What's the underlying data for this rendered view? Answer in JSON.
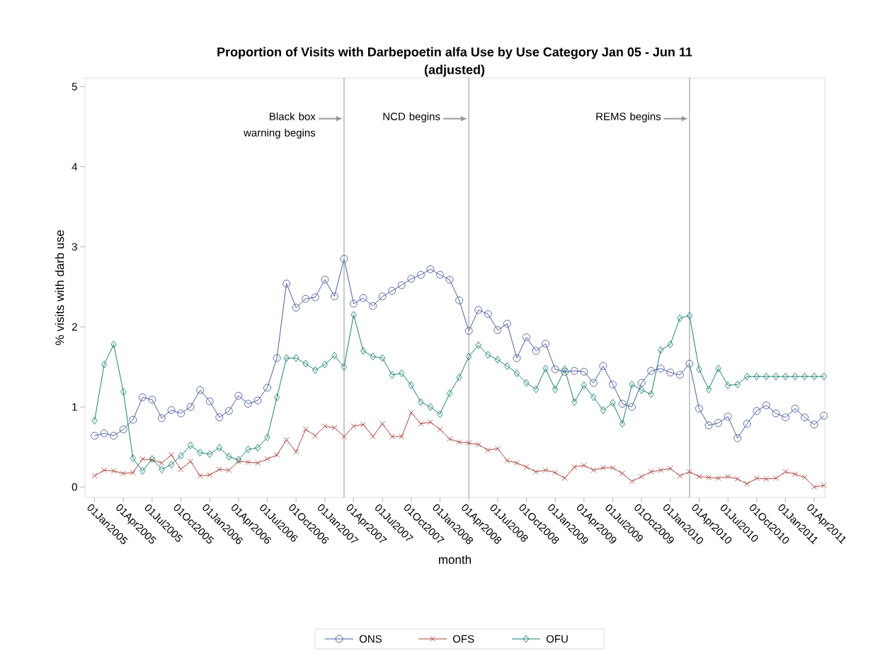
{
  "chart_data": {
    "type": "line",
    "title": "Proportion of Visits with Darbepoetin alfa Use by Use Category Jan 05 - Jun 11",
    "subtitle": "(adjusted)",
    "xlabel": "month",
    "ylabel": "% visits with darb use",
    "x": [
      "2005-01",
      "2005-02",
      "2005-03",
      "2005-04",
      "2005-05",
      "2005-06",
      "2005-07",
      "2005-08",
      "2005-09",
      "2005-10",
      "2005-11",
      "2005-12",
      "2006-01",
      "2006-02",
      "2006-03",
      "2006-04",
      "2006-05",
      "2006-06",
      "2006-07",
      "2006-08",
      "2006-09",
      "2006-10",
      "2006-11",
      "2006-12",
      "2007-01",
      "2007-02",
      "2007-03",
      "2007-04",
      "2007-05",
      "2007-06",
      "2007-07",
      "2007-08",
      "2007-09",
      "2007-10",
      "2007-11",
      "2007-12",
      "2008-01",
      "2008-02",
      "2008-03",
      "2008-04",
      "2008-05",
      "2008-06",
      "2008-07",
      "2008-08",
      "2008-09",
      "2008-10",
      "2008-11",
      "2008-12",
      "2009-01",
      "2009-02",
      "2009-03",
      "2009-04",
      "2009-05",
      "2009-06",
      "2009-07",
      "2009-08",
      "2009-09",
      "2009-10",
      "2009-11",
      "2009-12",
      "2010-01",
      "2010-02",
      "2010-03",
      "2010-04",
      "2010-05",
      "2010-06",
      "2010-07",
      "2010-08",
      "2010-09",
      "2010-10",
      "2010-11",
      "2010-12",
      "2011-01",
      "2011-02",
      "2011-03",
      "2011-04",
      "2011-05"
    ],
    "series": [
      {
        "name": "ONS",
        "color": "#4a5a9e",
        "marker": "circle",
        "values": [
          0.64,
          0.67,
          0.64,
          0.72,
          0.84,
          1.12,
          1.09,
          0.86,
          0.96,
          0.92,
          1.0,
          1.21,
          1.07,
          0.87,
          0.95,
          1.14,
          1.04,
          1.08,
          1.24,
          1.61,
          2.54,
          2.24,
          2.35,
          2.37,
          2.59,
          2.38,
          2.85,
          2.29,
          2.36,
          2.26,
          2.38,
          2.45,
          2.52,
          2.6,
          2.65,
          2.72,
          2.65,
          2.59,
          2.33,
          1.95,
          2.21,
          2.16,
          1.96,
          2.04,
          1.61,
          1.87,
          1.7,
          1.79,
          1.47,
          1.44,
          1.45,
          1.44,
          1.3,
          1.51,
          1.28,
          1.04,
          1.0,
          1.3,
          1.45,
          1.48,
          1.43,
          1.4,
          1.54,
          0.98,
          0.77,
          0.8,
          0.88,
          0.61,
          0.79,
          0.95,
          1.02,
          0.92,
          0.87,
          0.98,
          0.87,
          0.78,
          0.89
        ]
      },
      {
        "name": "OFS",
        "color": "#a8443a",
        "marker": "cross",
        "values": [
          0.14,
          0.21,
          0.2,
          0.17,
          0.18,
          0.35,
          0.34,
          0.3,
          0.4,
          0.22,
          0.32,
          0.14,
          0.15,
          0.22,
          0.21,
          0.32,
          0.31,
          0.3,
          0.35,
          0.4,
          0.59,
          0.44,
          0.72,
          0.64,
          0.76,
          0.74,
          0.63,
          0.76,
          0.78,
          0.63,
          0.79,
          0.63,
          0.63,
          0.93,
          0.79,
          0.81,
          0.72,
          0.6,
          0.56,
          0.55,
          0.53,
          0.46,
          0.48,
          0.33,
          0.3,
          0.25,
          0.19,
          0.21,
          0.18,
          0.11,
          0.25,
          0.27,
          0.21,
          0.24,
          0.24,
          0.17,
          0.07,
          0.13,
          0.19,
          0.21,
          0.23,
          0.14,
          0.19,
          0.13,
          0.12,
          0.11,
          0.13,
          0.1,
          0.04,
          0.11,
          0.1,
          0.11,
          0.19,
          0.16,
          0.12,
          0.0,
          0.02
        ]
      },
      {
        "name": "OFU",
        "color": "#1a7f6e",
        "marker": "diamond",
        "values": [
          0.83,
          1.53,
          1.78,
          1.19,
          0.36,
          0.2,
          0.35,
          0.22,
          0.28,
          0.39,
          0.52,
          0.43,
          0.41,
          0.49,
          0.38,
          0.34,
          0.47,
          0.49,
          0.62,
          1.12,
          1.61,
          1.61,
          1.54,
          1.46,
          1.53,
          1.64,
          1.5,
          2.15,
          1.7,
          1.63,
          1.61,
          1.4,
          1.42,
          1.27,
          1.06,
          1.0,
          0.91,
          1.17,
          1.37,
          1.63,
          1.77,
          1.65,
          1.59,
          1.51,
          1.42,
          1.3,
          1.22,
          1.48,
          1.22,
          1.47,
          1.06,
          1.27,
          1.12,
          0.96,
          1.05,
          0.79,
          1.28,
          1.21,
          1.16,
          1.71,
          1.78,
          2.11,
          2.14,
          1.47,
          1.22,
          1.48,
          1.27,
          1.28,
          1.38,
          1.38,
          1.38,
          1.38,
          1.38,
          1.38,
          1.38,
          1.38,
          1.38
        ]
      }
    ],
    "xlim": [
      "2004-12-01",
      "2011-05-04"
    ],
    "xticks": [
      {
        "value": "2005-01-01",
        "label": "01Jan2005"
      },
      {
        "value": "2005-04-01",
        "label": "01Apr2005"
      },
      {
        "value": "2005-07-01",
        "label": "01Jul2005"
      },
      {
        "value": "2005-10-01",
        "label": "01Oct2005"
      },
      {
        "value": "2006-01-01",
        "label": "01Jan2006"
      },
      {
        "value": "2006-04-01",
        "label": "01Apr2006"
      },
      {
        "value": "2006-07-01",
        "label": "01Jul2006"
      },
      {
        "value": "2006-10-01",
        "label": "01Oct2006"
      },
      {
        "value": "2007-01-01",
        "label": "01Jan2007"
      },
      {
        "value": "2007-04-01",
        "label": "01Apr2007"
      },
      {
        "value": "2007-07-01",
        "label": "01Jul2007"
      },
      {
        "value": "2007-10-01",
        "label": "01Oct2007"
      },
      {
        "value": "2008-01-01",
        "label": "01Jan2008"
      },
      {
        "value": "2008-04-01",
        "label": "01Apr2008"
      },
      {
        "value": "2008-07-01",
        "label": "01Jul2008"
      },
      {
        "value": "2008-10-01",
        "label": "01Oct2008"
      },
      {
        "value": "2009-01-01",
        "label": "01Jan2009"
      },
      {
        "value": "2009-04-01",
        "label": "01Apr2009"
      },
      {
        "value": "2009-07-01",
        "label": "01Jul2009"
      },
      {
        "value": "2009-10-01",
        "label": "01Oct2009"
      },
      {
        "value": "2010-01-01",
        "label": "01Jan2010"
      },
      {
        "value": "2010-04-01",
        "label": "01Apr2010"
      },
      {
        "value": "2010-07-01",
        "label": "01Jul2010"
      },
      {
        "value": "2010-10-01",
        "label": "01Oct2010"
      },
      {
        "value": "2011-01-01",
        "label": "01Jan2011"
      },
      {
        "value": "2011-04-01",
        "label": "01Apr2011"
      }
    ],
    "ylim": [
      -0.13,
      5.11
    ],
    "yticks": [
      0,
      1,
      2,
      3,
      4,
      5
    ],
    "ref_lines": [
      {
        "axis": "x",
        "value": "2007-03-01",
        "label": "Black box warning begins",
        "color": "#a0a4a8"
      },
      {
        "axis": "x",
        "value": "2008-04-01",
        "label": "NCD begins",
        "color": "#a0a4a8"
      },
      {
        "axis": "x",
        "value": "2010-03-01",
        "label": "REMS begins",
        "color": "#a0a4a8"
      }
    ],
    "legend": "bottom",
    "grid": false,
    "line_style": "solid"
  }
}
